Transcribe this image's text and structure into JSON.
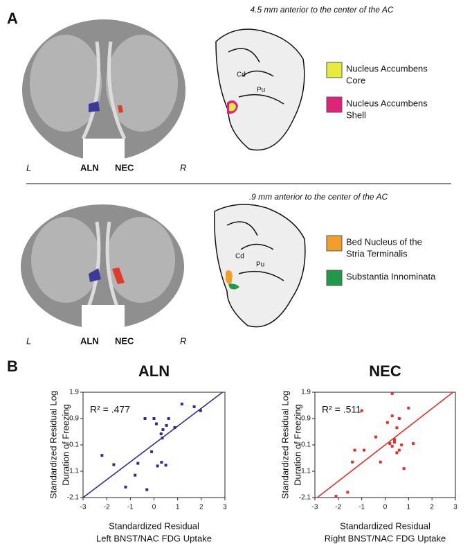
{
  "panel_a": {
    "label": "A",
    "sections": [
      {
        "caption": "4.5 mm anterior to the center of the AC",
        "left": "L",
        "aln": "ALN",
        "nec": "NEC",
        "right": "R",
        "cd": "Cd",
        "pu": "Pu",
        "legend": [
          {
            "lines": [
              "Nucleus Accumbens",
              "Core"
            ],
            "color": "#e6ec3c"
          },
          {
            "lines": [
              "Nucleus Accumbens",
              "Shell"
            ],
            "color": "#e0237a"
          }
        ]
      },
      {
        "caption": ".9 mm anterior to the center of the AC",
        "left": "L",
        "aln": "ALN",
        "nec": "NEC",
        "right": "R",
        "cd": "Cd",
        "pu": "Pu",
        "legend": [
          {
            "lines": [
              "Bed Nucleus of the",
              "Stria Terminalis"
            ],
            "color": "#f0a02a"
          },
          {
            "lines": [
              "Substantia Innominata"
            ],
            "color": "#1e9a4a"
          }
        ]
      }
    ]
  },
  "panel_b": {
    "label": "B"
  },
  "chart_data": [
    {
      "type": "scatter",
      "title": "ALN",
      "annotation": "R² = .477",
      "color": "#2e2e8a",
      "ylabel": [
        "Standardized Residual Log",
        "Duration of Freezing"
      ],
      "xlabel": [
        "Standardized Residual",
        "Left BNST/NAC FDG Uptake"
      ],
      "x": [
        1.18,
        1.7,
        1.97,
        -0.38,
        0,
        0.62,
        0.1,
        0.53,
        0.88,
        0.38,
        0.3,
        0.35,
        -0.1,
        -2.2,
        -0.68,
        -1.7,
        0.32,
        0.15,
        0.5,
        -0.8,
        -1.2,
        -0.3
      ],
      "y": [
        1.45,
        1.35,
        1.2,
        0.9,
        0.9,
        0.9,
        0.7,
        0.64,
        0.56,
        0.48,
        0.32,
        0.16,
        -0.36,
        -0.5,
        -0.8,
        -0.85,
        -0.76,
        -0.9,
        -0.87,
        -1.25,
        -1.7,
        -1.8
      ],
      "fit_line": {
        "x": [
          -3,
          2.9
        ],
        "y": [
          -2.1,
          1.9
        ]
      },
      "xlim": [
        -3,
        3
      ],
      "ylim": [
        -2.1,
        1.9
      ],
      "xticks": [
        -3,
        -2,
        -1,
        0,
        1,
        2,
        3
      ],
      "yticks": [
        -2.1,
        -1.1,
        -0.1,
        0.9,
        1.9
      ]
    },
    {
      "type": "scatter",
      "title": "NEC",
      "annotation": "R² = .511",
      "color": "#e0302a",
      "ylabel": [
        "Standardized Residual Log",
        "Duration of Freezing"
      ],
      "xlabel": [
        "Standardized Residual",
        "Right BNST/NAC FDG Uptake"
      ],
      "x": [
        0.3,
        -1.0,
        1.0,
        0.3,
        0.6,
        0.1,
        0.5,
        -0.4,
        0.4,
        0.2,
        0.4,
        0.7,
        0.3,
        1.2,
        -1.3,
        0.5,
        0.6,
        -0.9,
        -1.4,
        -0.2,
        0.8,
        -1.6,
        -2.1
      ],
      "y": [
        1.85,
        1.2,
        1.3,
        1.0,
        0.9,
        0.75,
        0.55,
        0.2,
        0.1,
        -0.05,
        0.0,
        -0.1,
        -0.15,
        -0.05,
        -0.3,
        -0.4,
        -0.3,
        -0.3,
        -0.75,
        -0.75,
        -1.0,
        -1.9,
        -2.05
      ],
      "fit_line": {
        "x": [
          -2.9,
          2.9
        ],
        "y": [
          -2.1,
          1.9
        ]
      },
      "xlim": [
        -3,
        3
      ],
      "ylim": [
        -2.1,
        1.9
      ],
      "xticks": [
        -3,
        -2,
        -1,
        0,
        1,
        2,
        3
      ],
      "yticks": [
        -2.1,
        -1.1,
        -0.1,
        0.9,
        1.9
      ]
    }
  ]
}
